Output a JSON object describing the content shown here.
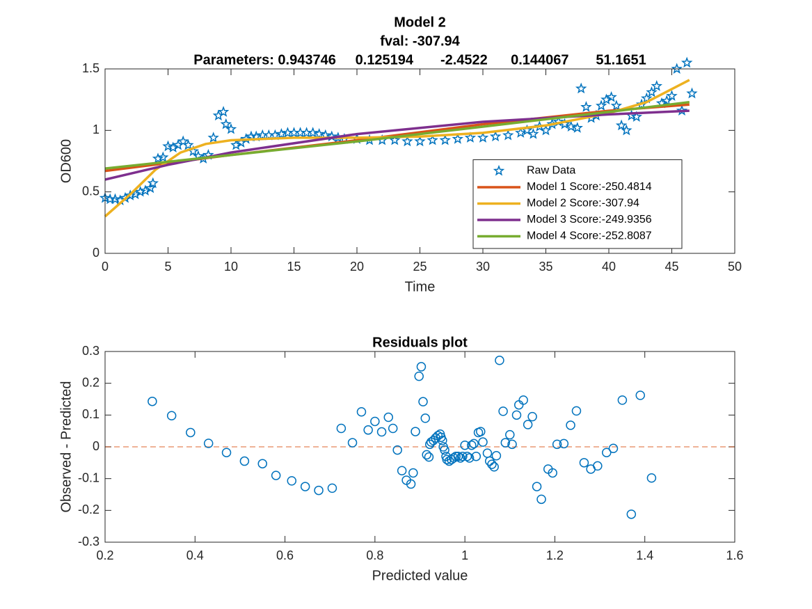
{
  "chart_data": [
    {
      "type": "line",
      "title": "Model 2",
      "subtitle": [
        "fval: -307.94",
        "Parameters: 0.943746     0.125194       -2.4522      0.144067       51.1651"
      ],
      "xlabel": "Time",
      "ylabel": "OD600",
      "xlim": [
        0,
        50
      ],
      "xticks": [
        0,
        5,
        10,
        15,
        20,
        25,
        30,
        35,
        40,
        45,
        50
      ],
      "ylim": [
        0,
        1.5
      ],
      "yticks": [
        0,
        0.5,
        1,
        1.5
      ],
      "grid": false,
      "legend": "southeast",
      "series": [
        {
          "name": "Raw Data",
          "color": "#0072bd",
          "marker": "star",
          "x": [
            0,
            0.4,
            0.8,
            1.2,
            1.6,
            2.0,
            2.4,
            2.8,
            3.2,
            3.6,
            3.8,
            4.2,
            4.6,
            5,
            5.4,
            5.8,
            6.2,
            6.6,
            7,
            7.4,
            7.8,
            8.2,
            8.6,
            9,
            9.4,
            9.6,
            10,
            10.4,
            10.8,
            11.2,
            11.6,
            12,
            12.5,
            13,
            13.5,
            14,
            14.5,
            15,
            15.5,
            16,
            16.5,
            17,
            17.5,
            18,
            18.5,
            19,
            20,
            21,
            22,
            23,
            24,
            25,
            26,
            27,
            28,
            29,
            30,
            31,
            32,
            33,
            33.5,
            34,
            34.5,
            35,
            35.5,
            36,
            36.5,
            37,
            37.5,
            37.8,
            38.2,
            38.6,
            39,
            39.4,
            39.8,
            40.2,
            40.6,
            41,
            41.4,
            41.8,
            42.2,
            42.6,
            43,
            43.4,
            43.8,
            44.2,
            44.6,
            45,
            45.4,
            45.8,
            46.2,
            46.6
          ],
          "values": [
            0.45,
            0.44,
            0.44,
            0.43,
            0.45,
            0.47,
            0.48,
            0.5,
            0.51,
            0.53,
            0.57,
            0.77,
            0.78,
            0.87,
            0.86,
            0.88,
            0.91,
            0.88,
            0.83,
            0.79,
            0.77,
            0.8,
            0.94,
            1.12,
            1.15,
            1.05,
            1.01,
            0.88,
            0.9,
            0.93,
            0.95,
            0.95,
            0.96,
            0.96,
            0.96,
            0.97,
            0.98,
            0.98,
            0.98,
            0.98,
            0.98,
            0.97,
            0.96,
            0.95,
            0.94,
            0.93,
            0.93,
            0.92,
            0.92,
            0.92,
            0.91,
            0.91,
            0.92,
            0.92,
            0.93,
            0.94,
            0.94,
            0.95,
            0.96,
            0.98,
            1.0,
            0.97,
            1.03,
            1.0,
            1.05,
            1.07,
            1.05,
            1.03,
            1.02,
            1.34,
            1.19,
            1.1,
            1.12,
            1.2,
            1.25,
            1.27,
            1.2,
            1.04,
            1.0,
            1.12,
            1.11,
            1.21,
            1.26,
            1.31,
            1.36,
            1.22,
            1.24,
            1.28,
            1.5,
            1.16,
            1.55,
            1.3
          ]
        },
        {
          "name": "Model 1 Score:-250.4814",
          "color": "#d95319",
          "x": [
            0,
            10,
            20,
            30,
            40,
            46.4
          ],
          "values": [
            0.67,
            0.8,
            0.92,
            1.05,
            1.16,
            1.21
          ]
        },
        {
          "name": "Model 2 Score:-307.94",
          "color": "#edb120",
          "x": [
            0,
            2,
            4,
            6,
            8,
            10,
            15,
            20,
            25,
            30,
            35,
            40,
            43,
            46.4
          ],
          "values": [
            0.3,
            0.48,
            0.68,
            0.82,
            0.89,
            0.92,
            0.94,
            0.94,
            0.95,
            0.98,
            1.04,
            1.14,
            1.23,
            1.41
          ]
        },
        {
          "name": "Model 3 Score:-249.9356",
          "color": "#7e2f8e",
          "x": [
            0,
            5,
            10,
            20,
            30,
            40,
            46.4
          ],
          "values": [
            0.6,
            0.72,
            0.82,
            0.97,
            1.07,
            1.13,
            1.16
          ]
        },
        {
          "name": "Model 4 Score:-252.8087",
          "color": "#77ac30",
          "x": [
            0,
            10,
            20,
            30,
            40,
            46.4
          ],
          "values": [
            0.69,
            0.8,
            0.91,
            1.03,
            1.15,
            1.23
          ]
        }
      ]
    },
    {
      "type": "scatter",
      "title": "Residuals plot",
      "xlabel": "Predicted value",
      "ylabel": "Observed - Predicted",
      "xlim": [
        0.2,
        1.6
      ],
      "xticks": [
        0.2,
        0.4,
        0.6,
        0.8,
        1,
        1.2,
        1.4,
        1.6
      ],
      "ylim": [
        -0.3,
        0.3
      ],
      "yticks": [
        -0.3,
        -0.2,
        -0.1,
        0,
        0.1,
        0.2,
        0.3
      ],
      "grid": false,
      "hline": 0,
      "marker": "circle",
      "color": "#0072bd",
      "x": [
        0.305,
        0.348,
        0.39,
        0.43,
        0.47,
        0.51,
        0.55,
        0.58,
        0.615,
        0.645,
        0.675,
        0.705,
        0.725,
        0.75,
        0.77,
        0.785,
        0.8,
        0.815,
        0.83,
        0.84,
        0.85,
        0.86,
        0.87,
        0.88,
        0.885,
        0.89,
        0.898,
        0.903,
        0.907,
        0.912,
        0.915,
        0.92,
        0.922,
        0.925,
        0.93,
        0.935,
        0.94,
        0.945,
        0.947,
        0.95,
        0.952,
        0.955,
        0.958,
        0.96,
        0.965,
        0.97,
        0.975,
        0.98,
        0.985,
        0.99,
        0.995,
        1.0,
        1.005,
        1.01,
        1.015,
        1.02,
        1.025,
        1.03,
        1.035,
        1.04,
        1.05,
        1.055,
        1.06,
        1.065,
        1.07,
        1.077,
        1.085,
        1.09,
        1.1,
        1.105,
        1.115,
        1.12,
        1.13,
        1.14,
        1.15,
        1.16,
        1.17,
        1.185,
        1.195,
        1.205,
        1.22,
        1.235,
        1.248,
        1.265,
        1.28,
        1.295,
        1.315,
        1.33,
        1.35,
        1.37,
        1.39,
        1.415
      ],
      "values": [
        0.143,
        0.098,
        0.045,
        0.011,
        -0.018,
        -0.045,
        -0.053,
        -0.09,
        -0.107,
        -0.125,
        -0.137,
        -0.13,
        0.058,
        0.013,
        0.11,
        0.053,
        0.08,
        0.047,
        0.093,
        0.058,
        -0.01,
        -0.075,
        -0.105,
        -0.117,
        -0.082,
        0.048,
        0.222,
        0.252,
        0.142,
        0.09,
        -0.025,
        -0.032,
        0.008,
        0.015,
        0.02,
        0.028,
        0.035,
        0.04,
        0.03,
        0.02,
        0.0,
        -0.01,
        -0.03,
        -0.04,
        -0.045,
        -0.04,
        -0.035,
        -0.03,
        -0.03,
        -0.035,
        -0.03,
        0.005,
        -0.03,
        -0.035,
        0.005,
        0.01,
        -0.03,
        0.045,
        0.048,
        0.015,
        -0.02,
        -0.045,
        -0.055,
        -0.063,
        -0.028,
        0.272,
        0.112,
        0.013,
        0.038,
        0.008,
        0.1,
        0.132,
        0.147,
        0.07,
        0.095,
        -0.125,
        -0.165,
        -0.07,
        -0.082,
        0.008,
        0.01,
        0.068,
        0.113,
        -0.05,
        -0.07,
        -0.06,
        -0.018,
        -0.005,
        0.147,
        -0.212,
        0.162,
        -0.098
      ]
    }
  ]
}
